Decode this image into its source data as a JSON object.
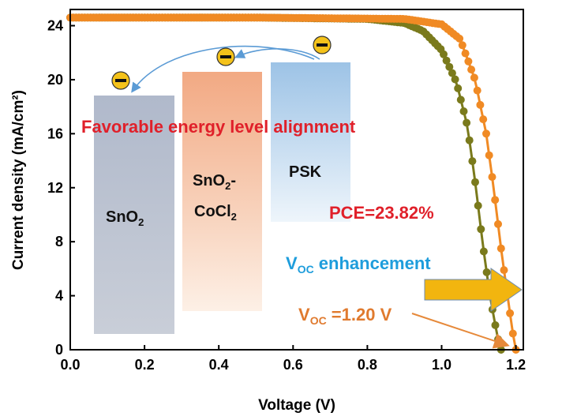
{
  "chart_data": {
    "type": "line",
    "xlabel": "Voltage (V)",
    "ylabel": "Current density (mA/cm²)",
    "xlim": [
      0.0,
      1.22
    ],
    "ylim": [
      0,
      25.2
    ],
    "xticks": [
      "0.0",
      "0.2",
      "0.4",
      "0.6",
      "0.8",
      "1.0",
      "1.2"
    ],
    "yticks": [
      "0",
      "4",
      "8",
      "12",
      "16",
      "20",
      "24"
    ],
    "grid": false,
    "series": [
      {
        "color": "#7a7a1c",
        "jsc": 24.6,
        "voc": 1.16,
        "x": [
          0.0,
          0.5,
          0.8,
          0.9,
          0.95,
          1.0,
          1.04,
          1.07,
          1.09,
          1.11,
          1.13,
          1.15,
          1.16
        ],
        "values": [
          24.6,
          24.6,
          24.5,
          24.2,
          23.6,
          22.2,
          19.8,
          16.5,
          12.5,
          8.0,
          4.0,
          1.0,
          0
        ]
      },
      {
        "color": "#f08a24",
        "jsc": 24.6,
        "voc": 1.2,
        "x": [
          0.0,
          0.5,
          0.9,
          1.0,
          1.05,
          1.09,
          1.12,
          1.14,
          1.16,
          1.18,
          1.19,
          1.2
        ],
        "values": [
          24.6,
          24.6,
          24.5,
          24.1,
          23.0,
          20.0,
          16.0,
          12.0,
          7.5,
          3.5,
          1.5,
          0
        ]
      }
    ],
    "annotations": {
      "alignment": "Favorable energy level alignment",
      "pce": "PCE=23.82%",
      "voc_enh_main": "V",
      "voc_enh_sub": "OC",
      "voc_enh_rest": " enhancement",
      "voc_val_main": "V",
      "voc_val_sub": "OC",
      "voc_val_rest": " =1.20 V"
    },
    "energy_blocks": [
      {
        "lines": [
          [
            "SnO",
            "2",
            ""
          ]
        ]
      },
      {
        "lines": [
          [
            "SnO",
            "2",
            "-"
          ],
          [
            "CoCl",
            "2",
            ""
          ]
        ]
      },
      {
        "lines": [
          [
            "PSK",
            "",
            ""
          ]
        ]
      }
    ],
    "electron_symbol": "−"
  }
}
